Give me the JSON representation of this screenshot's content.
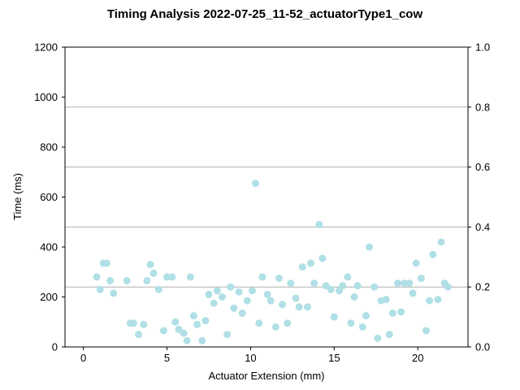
{
  "chart_data": {
    "type": "scatter",
    "title": "Timing Analysis 2022-07-25_11-52_actuatorType1_cow",
    "xlabel": "Actuator Extension (mm)",
    "ylabel": "Time (ms)",
    "xlim": [
      -1.1,
      23.0
    ],
    "ylim": [
      0,
      1200
    ],
    "y2lim": [
      0,
      1.0
    ],
    "xticks": [
      "0",
      "5",
      "10",
      "15",
      "20"
    ],
    "yticks": [
      "0",
      "200",
      "400",
      "600",
      "800",
      "1000",
      "1200"
    ],
    "y2ticks": [
      "0.0",
      "0.2",
      "0.4",
      "0.6",
      "0.8",
      "1.0"
    ],
    "grid": "horizontal lines at right-axis ticks",
    "marker_color": "#b0e0e6",
    "series": [
      {
        "x": [
          0.8,
          1.0,
          1.2,
          1.4,
          1.6,
          1.8,
          2.6,
          2.8,
          3.0,
          3.3,
          3.6,
          3.8,
          4.0,
          4.2,
          4.5,
          4.8,
          5.0,
          5.3,
          5.5,
          5.7,
          6.0,
          6.2,
          6.4,
          6.6,
          6.8,
          7.1,
          7.3,
          7.5,
          7.8,
          8.0,
          8.3,
          8.6,
          8.8,
          9.0,
          9.3,
          9.5,
          9.8,
          10.1,
          10.3,
          10.5,
          10.7,
          11.0,
          11.2,
          11.5,
          11.7,
          11.9,
          12.2,
          12.4,
          12.7,
          12.9,
          13.1,
          13.4,
          13.6,
          13.8,
          14.1,
          14.3,
          14.5,
          14.8,
          15.0,
          15.3,
          15.5,
          15.8,
          16.0,
          16.2,
          16.4,
          16.7,
          16.9,
          17.1,
          17.4,
          17.6,
          17.8,
          18.1,
          18.3,
          18.5,
          18.8,
          19.0,
          19.2,
          19.5,
          19.7,
          19.9,
          20.2,
          20.5,
          20.7,
          20.9,
          21.2,
          21.4,
          21.6,
          21.8
        ],
        "y": [
          280,
          230,
          335,
          335,
          265,
          215,
          265,
          95,
          95,
          50,
          90,
          265,
          330,
          295,
          230,
          65,
          280,
          280,
          100,
          70,
          55,
          25,
          280,
          125,
          90,
          25,
          105,
          210,
          175,
          225,
          200,
          50,
          240,
          155,
          220,
          135,
          185,
          225,
          655,
          95,
          280,
          210,
          185,
          80,
          275,
          170,
          95,
          255,
          195,
          160,
          320,
          160,
          335,
          255,
          490,
          355,
          245,
          230,
          120,
          225,
          245,
          280,
          95,
          200,
          245,
          80,
          125,
          400,
          240,
          35,
          185,
          190,
          50,
          135,
          255,
          140,
          255,
          255,
          215,
          335,
          275,
          65,
          185,
          370,
          190,
          420,
          255,
          240
        ]
      }
    ]
  }
}
